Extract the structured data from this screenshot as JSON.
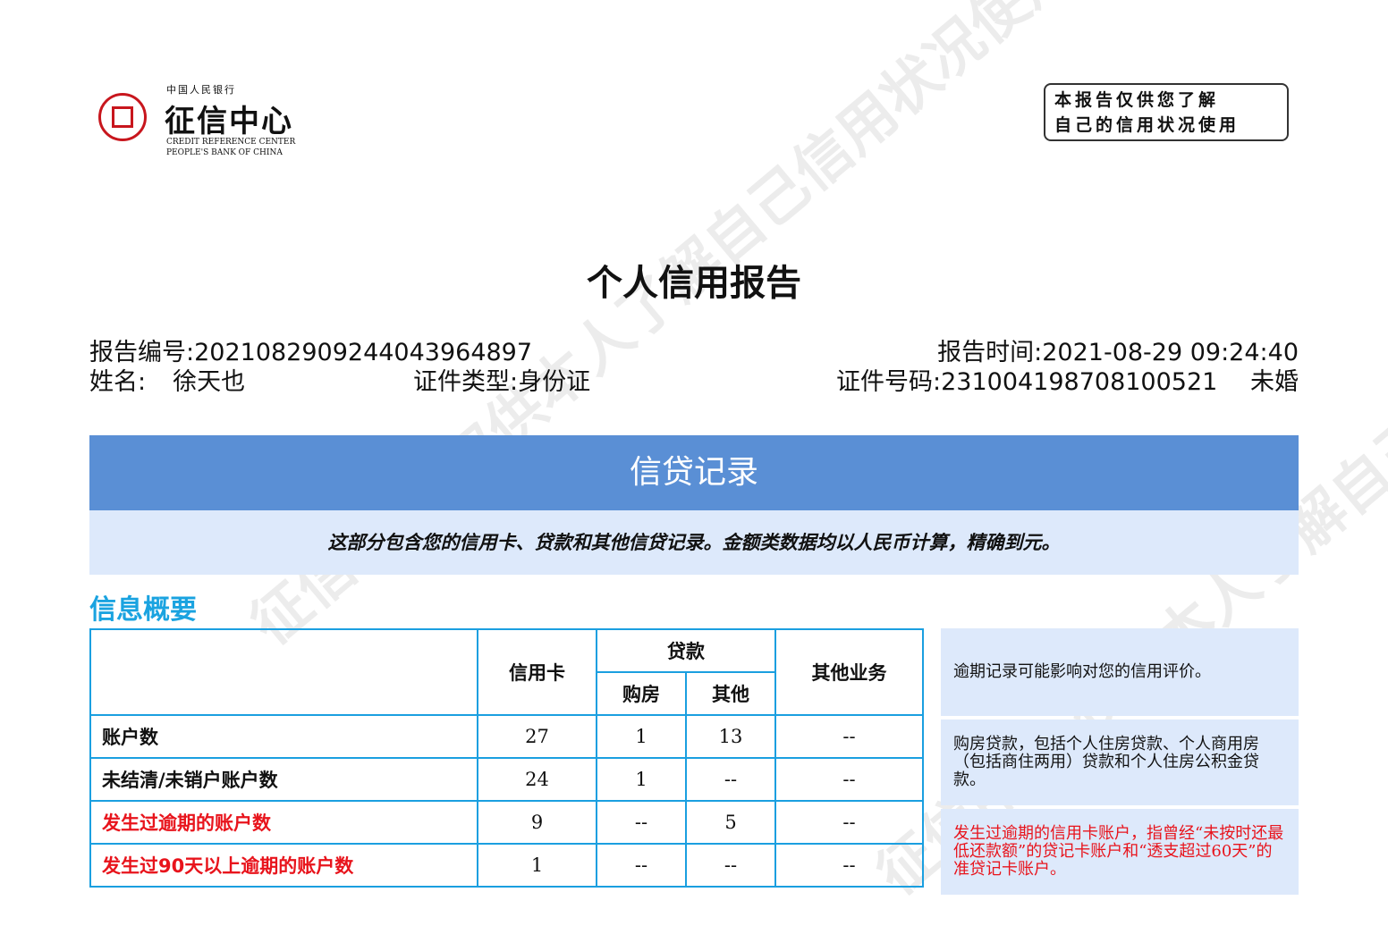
{
  "logo": {
    "top": "中国人民银行",
    "main": "征信中心",
    "en1": "CREDIT REFERENCE CENTER",
    "en2": "PEOPLE'S BANK OF CHINA",
    "seal_color": "#c8161d"
  },
  "stamp": {
    "line1": "本报告仅供您了解",
    "line2": "自己的信用状况使用"
  },
  "watermark": "征信中心 仅供本人了解自己信用状况使用",
  "title": "个人信用报告",
  "info": {
    "report_no_label": "报告编号:",
    "report_no": "2021082909244043964897",
    "report_time_label": "报告时间:",
    "report_time": "2021-08-29 09:24:40",
    "name_label": "姓名:",
    "name": "徐天也",
    "id_type_label": "证件类型:",
    "id_type": "身份证",
    "id_no_label": "证件号码:",
    "id_no": "231004198708100521",
    "marital": "未婚"
  },
  "banner": {
    "title": "信贷记录",
    "color": "#5a8fd5"
  },
  "subtitle": "这部分包含您的信用卡、贷款和其他信贷记录。金额类数据均以人民币计算，精确到元。",
  "section_title": "信息概要",
  "table": {
    "headers": {
      "credit_card": "信用卡",
      "loan": "贷款",
      "housing": "购房",
      "other_loan": "其他",
      "other_business": "其他业务"
    },
    "rows": [
      {
        "label": "账户数",
        "values": [
          "27",
          "1",
          "13",
          "--"
        ],
        "highlight": false
      },
      {
        "label": "未结清/未销户账户数",
        "values": [
          "24",
          "1",
          "--",
          "--"
        ],
        "highlight": false
      },
      {
        "label": "发生过逾期的账户数",
        "values": [
          "9",
          "--",
          "5",
          "--"
        ],
        "highlight": true
      },
      {
        "label": "发生过90天以上逾期的账户数",
        "values": [
          "1",
          "--",
          "--",
          "--"
        ],
        "highlight": true
      }
    ]
  },
  "notes": [
    "逾期记录可能影响对您的信用评价。",
    "购房贷款，包括个人住房贷款、个人商用房（包括商住两用）贷款和个人住房公积金贷款。",
    "发生过逾期的信用卡账户，指曾经“未按时还最低还款额”的贷记卡账户和“透支超过60天”的准贷记卡账户。"
  ],
  "colors": {
    "accent": "#1aa3e0",
    "warning": "#e8141c",
    "band": "#dde9fb"
  }
}
